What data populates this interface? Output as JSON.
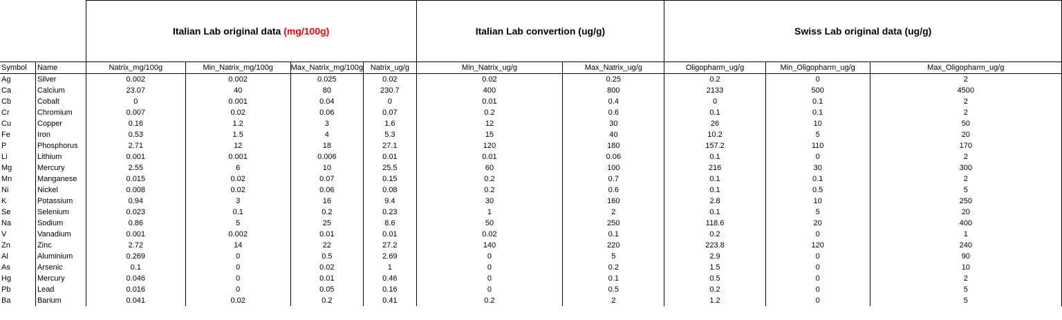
{
  "groups": [
    {
      "title": "Italian Lab original data ",
      "unit": "(mg/100g)",
      "unit_color": "#ff0000"
    },
    {
      "title": "Italian Lab convertion (ug/g)",
      "unit": ""
    },
    {
      "title": "Swiss Lab original data (ug/g)",
      "unit": ""
    }
  ],
  "columns": [
    "Symbol",
    "Name",
    "Natrix_mg/100g",
    "Min_Natrix_mg/100g",
    "Max_Natrix_mg/100g",
    "Natrix_ug/g",
    "Min_Natrix_ug/g",
    "Max_Natrix_ug/g",
    "Oligopharm_ug/g",
    "Min_Oligopharm_ug/g",
    "Max_Oligopharm_ug/g"
  ],
  "rows": [
    [
      "Ag",
      "Silver",
      "0.002",
      "0.002",
      "0.025",
      "0.02",
      "0.02",
      "0.25",
      "0.2",
      "0",
      "2"
    ],
    [
      "Ca",
      "Calcium",
      "23.07",
      "40",
      "80",
      "230.7",
      "400",
      "800",
      "2133",
      "500",
      "4500"
    ],
    [
      "Cb",
      "Cobalt",
      "0",
      "0.001",
      "0.04",
      "0",
      "0.01",
      "0.4",
      "0",
      "0.1",
      "2"
    ],
    [
      "Cr",
      "Chromium",
      "0.007",
      "0.02",
      "0.06",
      "0.07",
      "0.2",
      "0.6",
      "0.1",
      "0.1",
      "2"
    ],
    [
      "Cu",
      "Copper",
      "0.16",
      "1.2",
      "3",
      "1.6",
      "12",
      "30",
      "26",
      "10",
      "50"
    ],
    [
      "Fe",
      "Iron",
      "0.53",
      "1.5",
      "4",
      "5.3",
      "15",
      "40",
      "10.2",
      "5",
      "20"
    ],
    [
      "P",
      "Phosphorus",
      "2.71",
      "12",
      "18",
      "27.1",
      "120",
      "180",
      "157.2",
      "110",
      "170"
    ],
    [
      "Li",
      "Lithium",
      "0.001",
      "0.001",
      "0.006",
      "0.01",
      "0.01",
      "0.06",
      "0.1",
      "0",
      "2"
    ],
    [
      "Mg",
      "Mercury",
      "2.55",
      "6",
      "10",
      "25.5",
      "60",
      "100",
      "216",
      "30",
      "300"
    ],
    [
      "Mn",
      "Manganese",
      "0.015",
      "0.02",
      "0.07",
      "0.15",
      "0.2",
      "0.7",
      "0.1",
      "0.1",
      "2"
    ],
    [
      "Ni",
      "Nickel",
      "0.008",
      "0.02",
      "0.06",
      "0.08",
      "0.2",
      "0.6",
      "0.1",
      "0.5",
      "5"
    ],
    [
      "K",
      "Potassium",
      "0.94",
      "3",
      "16",
      "9.4",
      "30",
      "160",
      "2.8",
      "10",
      "250"
    ],
    [
      "Se",
      "Selenium",
      "0.023",
      "0.1",
      "0.2",
      "0.23",
      "1",
      "2",
      "0.1",
      "5",
      "20"
    ],
    [
      "Na",
      "Sodium",
      "0.86",
      "5",
      "25",
      "8.6",
      "50",
      "250",
      "118.6",
      "20",
      "400"
    ],
    [
      "V",
      "Vanadium",
      "0.001",
      "0.002",
      "0.01",
      "0.01",
      "0.02",
      "0.1",
      "0.2",
      "0",
      "1"
    ],
    [
      "Zn",
      "Zinc",
      "2.72",
      "14",
      "22",
      "27.2",
      "140",
      "220",
      "223.8",
      "120",
      "240"
    ],
    [
      "Al",
      "Aluminium",
      "0.269",
      "0",
      "0.5",
      "2.69",
      "0",
      "5",
      "2.9",
      "0",
      "90"
    ],
    [
      "As",
      "Arsenic",
      "0.1",
      "0",
      "0.02",
      "1",
      "0",
      "0.2",
      "1.5",
      "0",
      "10"
    ],
    [
      "Hg",
      "Mercury",
      "0.046",
      "0",
      "0.01",
      "0.46",
      "0",
      "0.1",
      "0.5",
      "0",
      "2"
    ],
    [
      "Pb",
      "Lead",
      "0.016",
      "0",
      "0.05",
      "0.16",
      "0",
      "0.5",
      "0.2",
      "0",
      "5"
    ],
    [
      "Ba",
      "Barium",
      "0.041",
      "0.02",
      "0.2",
      "0.41",
      "0.2",
      "2",
      "1.2",
      "0",
      "5"
    ]
  ]
}
